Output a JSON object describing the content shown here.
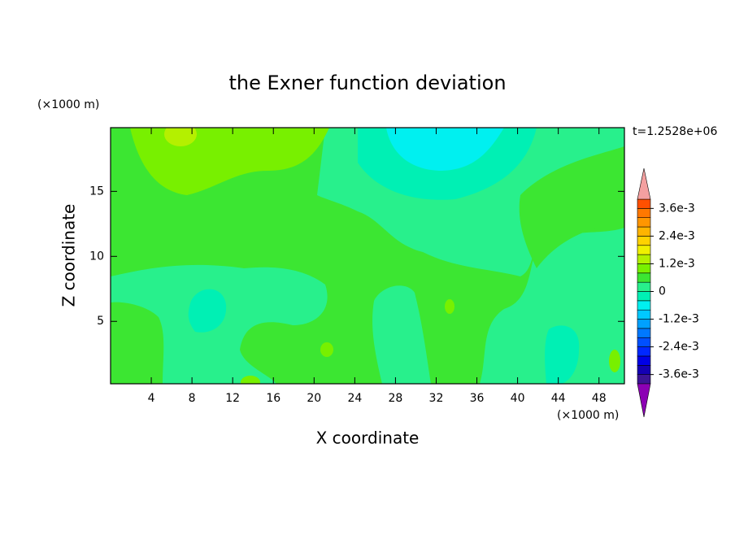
{
  "chart_data": {
    "type": "contour",
    "title": "the Exner function deviation",
    "x_label": "X coordinate",
    "y_label": "Z coordinate",
    "x_unit": "(×1000 m)",
    "y_unit": "(×1000 m)",
    "time_label": "t=1.2528e+06",
    "xlim": [
      0,
      50.5
    ],
    "ylim": [
      0.2,
      19.9
    ],
    "xticks": [
      4,
      8,
      12,
      16,
      20,
      24,
      28,
      32,
      36,
      40,
      44,
      48
    ],
    "yticks": [
      5,
      10,
      15
    ],
    "colorbar": {
      "levels": [
        -0.004,
        -0.0036,
        -0.0032,
        -0.0028,
        -0.0024,
        -0.002,
        -0.0016,
        -0.0012,
        -0.0008,
        -0.0004,
        0,
        0.0004,
        0.0008,
        0.0012,
        0.0016,
        0.002,
        0.0024,
        0.0028,
        0.0032,
        0.0036,
        0.004
      ],
      "colors": [
        "#8c00b4",
        "#3c1496",
        "#1400b4",
        "#0000e6",
        "#0028ff",
        "#0050ff",
        "#0078ff",
        "#00a0ff",
        "#00c8ff",
        "#00f0f0",
        "#00f0b4",
        "#28f08c",
        "#3ce632",
        "#78f000",
        "#b4f000",
        "#f0f000",
        "#ffd200",
        "#ffb400",
        "#ff9600",
        "#ff7800",
        "#ff5000",
        "#ff2828",
        "#f4a0a0"
      ],
      "ticks": [
        {
          "value": -0.0036,
          "label": "-3.6e-3"
        },
        {
          "value": -0.0024,
          "label": "-2.4e-3"
        },
        {
          "value": -0.0012,
          "label": "-1.2e-3"
        },
        0,
        {
          "value": 0.0012,
          "label": "1.2e-3"
        },
        {
          "value": 0.0024,
          "label": "2.4e-3"
        },
        {
          "value": 0.0036,
          "label": "3.6e-3"
        }
      ]
    }
  }
}
